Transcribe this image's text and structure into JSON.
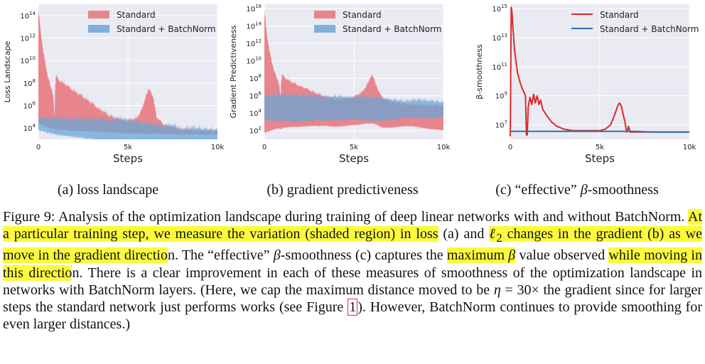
{
  "chart_data": [
    {
      "type": "area",
      "panel": "a",
      "title": "",
      "xlabel": "Steps",
      "ylabel": "Loss Landscape",
      "xlim": [
        0,
        10000
      ],
      "ylim_log10": [
        3,
        15
      ],
      "log_scale_y": true,
      "grid": true,
      "legend": "top-center",
      "x_tick_labels": [
        "0",
        "5k",
        "10k"
      ],
      "y_tick_labels": [
        "10^4",
        "10^6",
        "10^8",
        "10^10",
        "10^12",
        "10^14"
      ],
      "y_tick_values": [
        4,
        6,
        8,
        10,
        12,
        14
      ],
      "series": [
        {
          "name": "Standard",
          "color": "#e8737a",
          "x": [
            0,
            120,
            250,
            400,
            550,
            700,
            850,
            900,
            950,
            1000,
            1200,
            1500,
            2000,
            2500,
            3000,
            3500,
            4000,
            4500,
            5000,
            5500,
            5800,
            6000,
            6200,
            6400,
            6600,
            7000,
            7500,
            8000,
            8500,
            9000,
            9500,
            10000
          ],
          "upper": [
            14.5,
            12.8,
            11.0,
            9.6,
            8.5,
            7.6,
            6.8,
            4.6,
            8.4,
            8.6,
            8.2,
            7.9,
            7.3,
            6.8,
            6.2,
            5.6,
            5.1,
            4.8,
            4.7,
            4.9,
            5.7,
            6.9,
            7.5,
            6.8,
            5.0,
            4.3,
            4.1,
            3.9,
            3.8,
            3.8,
            3.8,
            3.8
          ],
          "lower": [
            4.6,
            4.4,
            4.3,
            4.2,
            4.1,
            4.0,
            4.0,
            4.0,
            4.0,
            3.9,
            3.9,
            3.9,
            3.8,
            3.8,
            3.8,
            3.7,
            3.7,
            3.6,
            3.6,
            3.6,
            3.6,
            3.5,
            3.5,
            3.6,
            3.6,
            3.5,
            3.5,
            3.5,
            3.5,
            3.5,
            3.5,
            3.5
          ]
        },
        {
          "name": "Standard + BatchNorm",
          "color": "#6aa6d6",
          "x": [
            0,
            500,
            1000,
            1500,
            2000,
            2500,
            3000,
            3500,
            4000,
            4500,
            5000,
            5500,
            6000,
            6500,
            7000,
            7500,
            8000,
            8500,
            9000,
            9500,
            10000
          ],
          "upper": [
            4.9,
            4.9,
            4.9,
            4.8,
            4.8,
            4.9,
            4.8,
            4.9,
            4.7,
            4.9,
            4.7,
            4.6,
            4.4,
            4.3,
            4.2,
            4.3,
            3.9,
            4.1,
            4.0,
            3.9,
            3.9
          ],
          "lower": [
            3.9,
            3.7,
            3.5,
            3.4,
            3.3,
            3.2,
            3.1,
            3.0,
            2.9,
            2.9,
            2.8,
            2.8,
            2.8,
            2.8,
            2.9,
            2.9,
            2.9,
            2.9,
            2.9,
            2.9,
            2.9
          ]
        }
      ]
    },
    {
      "type": "area",
      "panel": "b",
      "title": "",
      "xlabel": "Steps",
      "ylabel": "Gradient Predictiveness",
      "xlim": [
        0,
        10000
      ],
      "ylim_log10": [
        1,
        16.5
      ],
      "log_scale_y": true,
      "grid": true,
      "legend": "top-center",
      "x_tick_labels": [
        "0",
        "5k",
        "10k"
      ],
      "y_tick_labels": [
        "10^2",
        "10^4",
        "10^6",
        "10^8",
        "10^10",
        "10^12",
        "10^14",
        "10^16"
      ],
      "y_tick_values": [
        2,
        4,
        6,
        8,
        10,
        12,
        14,
        16
      ],
      "series": [
        {
          "name": "Standard",
          "color": "#e8737a",
          "x": [
            0,
            120,
            250,
            400,
            550,
            700,
            850,
            900,
            950,
            1000,
            1200,
            1500,
            2000,
            2500,
            3000,
            3500,
            4000,
            4500,
            5000,
            5500,
            5800,
            6000,
            6200,
            6400,
            6600,
            7000,
            7500,
            8000,
            8500,
            9000,
            9500,
            10000
          ],
          "upper": [
            15.8,
            13.5,
            11.5,
            10.0,
            8.9,
            8.0,
            7.2,
            5.0,
            8.2,
            8.4,
            8.0,
            7.6,
            7.1,
            6.7,
            6.2,
            5.9,
            5.6,
            5.7,
            5.9,
            6.5,
            7.5,
            8.5,
            7.5,
            6.4,
            5.8,
            5.4,
            5.2,
            5.0,
            5.0,
            4.9,
            4.9,
            4.9
          ],
          "lower": [
            1.8,
            1.9,
            2.0,
            2.1,
            2.2,
            2.3,
            2.3,
            2.2,
            2.3,
            2.4,
            2.4,
            2.5,
            2.5,
            2.6,
            2.6,
            2.6,
            2.5,
            2.6,
            2.7,
            2.8,
            2.9,
            2.9,
            2.8,
            2.6,
            2.4,
            2.4,
            2.5,
            2.6,
            2.5,
            2.3,
            2.2,
            2.1
          ]
        },
        {
          "name": "Standard + BatchNorm",
          "color": "#6aa6d6",
          "x": [
            0,
            500,
            1000,
            1500,
            2000,
            2500,
            3000,
            3500,
            4000,
            4500,
            5000,
            5500,
            6000,
            6500,
            7000,
            7500,
            8000,
            8500,
            9000,
            9500,
            10000
          ],
          "upper": [
            6.0,
            6.1,
            6.1,
            6.1,
            6.0,
            6.1,
            6.0,
            5.9,
            6.0,
            5.9,
            5.8,
            5.9,
            5.8,
            5.7,
            5.6,
            5.5,
            5.4,
            5.6,
            5.5,
            5.4,
            5.3
          ],
          "lower": [
            3.3,
            3.2,
            3.2,
            3.1,
            3.1,
            3.2,
            3.3,
            3.2,
            3.3,
            3.3,
            3.4,
            3.3,
            3.2,
            3.2,
            3.3,
            3.4,
            3.6,
            3.5,
            3.5,
            3.5,
            3.6
          ]
        }
      ]
    },
    {
      "type": "line",
      "panel": "c",
      "title": "",
      "xlabel": "Steps",
      "ylabel": "β-smoothness",
      "xlim": [
        0,
        10000
      ],
      "ylim_log10": [
        6.0,
        15.3
      ],
      "log_scale_y": true,
      "grid": true,
      "legend": "top-right",
      "x_tick_labels": [
        "0",
        "5k",
        "10k"
      ],
      "y_tick_labels": [
        "10^7",
        "10^9",
        "10^11",
        "10^13",
        "10^15"
      ],
      "y_tick_values": [
        7,
        9,
        11,
        13,
        15
      ],
      "series": [
        {
          "name": "Standard",
          "color": "#dd2a2a",
          "x": [
            0,
            50,
            100,
            150,
            250,
            400,
            550,
            700,
            850,
            900,
            950,
            1000,
            1100,
            1200,
            1300,
            1400,
            1500,
            1600,
            1700,
            1800,
            2000,
            2300,
            2600,
            3000,
            3500,
            4000,
            4500,
            5000,
            5300,
            5600,
            5800,
            6000,
            6100,
            6200,
            6400,
            6500,
            6550,
            6600,
            6700,
            6800,
            7000,
            8000,
            9000,
            10000
          ],
          "y": [
            6.2,
            15.1,
            14.7,
            13.6,
            12.0,
            10.6,
            9.9,
            9.4,
            9.0,
            6.3,
            6.3,
            8.2,
            8.9,
            8.4,
            9.1,
            8.5,
            9.0,
            8.4,
            8.7,
            8.1,
            7.7,
            7.2,
            6.9,
            6.7,
            6.6,
            6.6,
            6.6,
            6.6,
            6.7,
            7.0,
            7.6,
            8.3,
            8.5,
            8.3,
            7.2,
            6.5,
            6.6,
            6.9,
            6.5,
            6.5,
            6.5,
            6.5,
            6.5,
            6.5
          ]
        },
        {
          "name": "Standard + BatchNorm",
          "color": "#2c72b5",
          "x": [
            0,
            1000,
            2000,
            3000,
            4000,
            5000,
            6000,
            7000,
            8000,
            9000,
            10000
          ],
          "y": [
            6.55,
            6.55,
            6.55,
            6.55,
            6.55,
            6.55,
            6.55,
            6.55,
            6.5,
            6.5,
            6.5
          ]
        }
      ]
    }
  ],
  "subcaptions": {
    "a": "(a) loss landscape",
    "b": "(b) gradient predictiveness",
    "c_prefix": "(c) “effective” ",
    "c_beta": "β",
    "c_suffix": "-smoothness"
  },
  "caption": {
    "label": "Figure 9:",
    "s1": " Analysis of the optimization landscape during training of deep linear networks with and without BatchNorm. ",
    "h1": "At a particular training step, we measure the variation (shaded region) in loss",
    "s2": " (a) and ",
    "h2_l": "ℓ",
    "h2_sub": "2",
    "h2_rest": " changes in the gradient (b) as we move in the gradient directio",
    "s3": "n. The “effective” ",
    "beta": "β",
    "s4": "-smoothness (c) captures the ",
    "h3": "maximum ",
    "h3_beta": "β",
    "s5": " value observed ",
    "h4": "while moving in this directio",
    "s6": "n. There is a clear improvement in each of these measures of smoothness of the optimization landscape in networks with BatchNorm layers. (Here, we cap the maximum distance moved to be ",
    "eta": "η",
    "s7": " = 30× the gradient since for larger steps the standard network just performs works (see Figure ",
    "ref": "1",
    "s8": "). However, BatchNorm continues to provide smoothing for even larger distances.)"
  }
}
